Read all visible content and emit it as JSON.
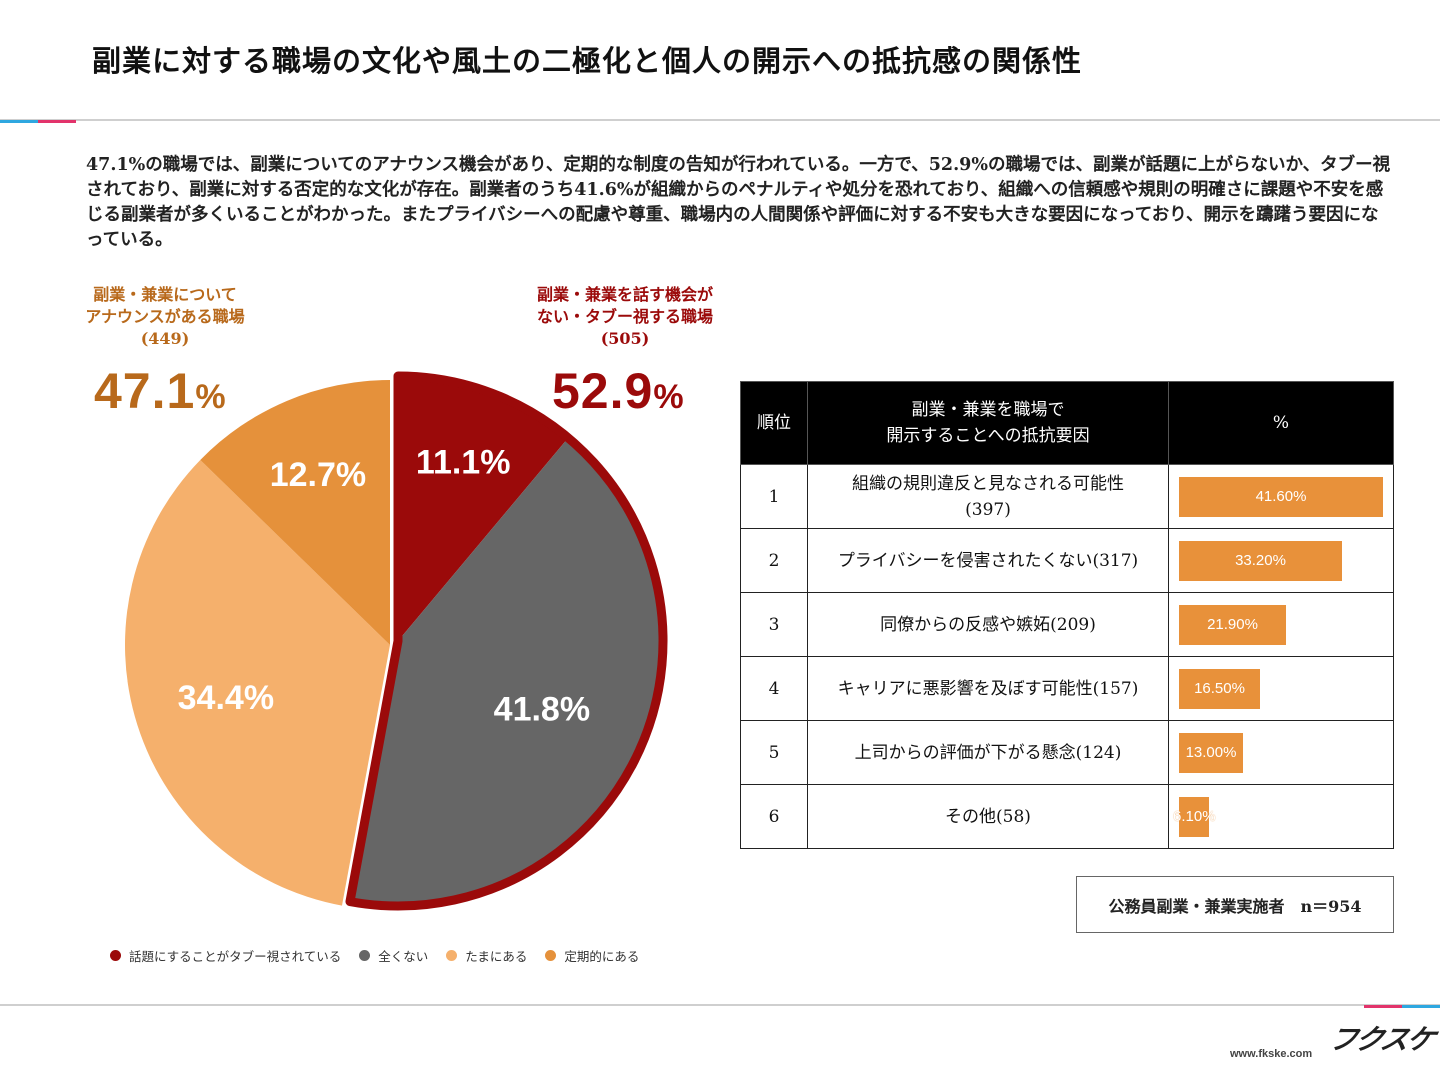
{
  "title": "副業に対する職場の文化や風土の二極化と個人の開示への抵抗感の関係性",
  "description": "47.1%の職場では、副業についてのアナウンス機会があり、定期的な制度の告知が行われている。一方で、52.9%の職場では、副業が話題に上がらないか、タブー視されており、副業に対する否定的な文化が存在。副業者のうち41.6%が組織からのペナルティや処分を恐れており、組織への信頼感や規則の明確さに課題や不安を感じる副業者が多くいることがわかった。またプライバシーへの配慮や尊重、職場内の人間関係や評価に対する不安も大きな要因になっており、開示を躊躇う要因になっている。",
  "groups": {
    "left": {
      "line1": "副業・兼業について",
      "line2": "アナウンスがある職場",
      "count": "(449)",
      "value": "47.1",
      "unit": "%",
      "color": "#b8691b"
    },
    "right": {
      "line1": "副業・兼業を話す機会が",
      "line2": "ない・タブー視する職場",
      "count": "(505)",
      "value": "52.9",
      "unit": "%",
      "color": "#9b0a0a"
    }
  },
  "chart_data": [
    {
      "type": "pie",
      "labels": [
        "話題にすることがタブー視されている",
        "全くない",
        "たまにある",
        "定期的にある"
      ],
      "values": [
        11.1,
        41.8,
        34.4,
        12.7
      ],
      "value_labels": [
        "11.1%",
        "41.8%",
        "34.4%",
        "12.7%"
      ],
      "colors": [
        "#9b0a0a",
        "#666666",
        "#f5b06c",
        "#e5913b"
      ],
      "legend_position": "bottom"
    },
    {
      "type": "table",
      "headers": {
        "rank": "順位",
        "factor_line1": "副業・兼業を職場で",
        "factor_line2": "開示することへの抵抗要因",
        "pct": "%"
      },
      "rows": [
        {
          "rank": "1",
          "factor": "組織の規則違反と見なされる可能性",
          "factor_count": "(397)",
          "value": 41.6,
          "label": "41.60%"
        },
        {
          "rank": "2",
          "factor": "プライバシーを侵害されたくない(317)",
          "factor_count": "",
          "value": 33.2,
          "label": "33.20%"
        },
        {
          "rank": "3",
          "factor": "同僚からの反感や嫉妬(209)",
          "factor_count": "",
          "value": 21.9,
          "label": "21.90%"
        },
        {
          "rank": "4",
          "factor": "キャリアに悪影響を及ぼす可能性(157)",
          "factor_count": "",
          "value": 16.5,
          "label": "16.50%"
        },
        {
          "rank": "5",
          "factor": "上司からの評価が下がる懸念(124)",
          "factor_count": "",
          "value": 13.0,
          "label": "13.00%"
        },
        {
          "rank": "6",
          "factor": "その他(58)",
          "factor_count": "",
          "value": 6.1,
          "label": "6.10%"
        }
      ],
      "bar_color": "#e8913a",
      "value_max": 41.6
    }
  ],
  "note": "公務員副業・兼業実施者　n＝954",
  "footer": {
    "logo": "フクスケ",
    "url": "www.fkske.com"
  }
}
